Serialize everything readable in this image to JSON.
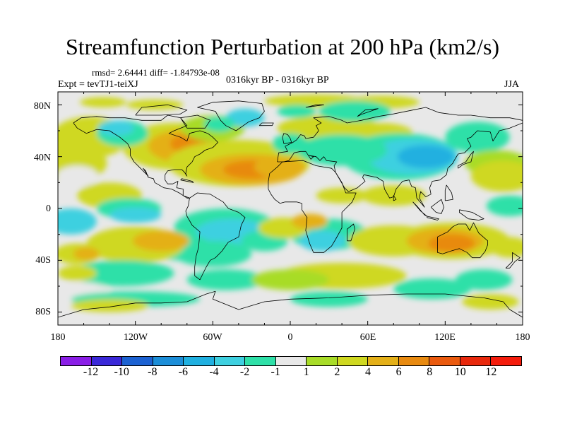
{
  "figure": {
    "title": "Streamfunction Perturbation at 200 hPa (km2/s)",
    "stats": "rmsd= 2.64441  diff= -1.84793e-08",
    "experiment": "Expt = tevTJ1-teiXJ",
    "period": "0316kyr BP - 0316kyr BP",
    "season": "JJA"
  },
  "map": {
    "projection": "cylindrical equidistant",
    "lon_range": [
      -180,
      180
    ],
    "lat_range": [
      -90,
      90
    ],
    "lat_labels": [
      "80N",
      "40N",
      "0",
      "40S",
      "80S"
    ],
    "lon_labels": [
      "180",
      "120W",
      "60W",
      "0",
      "60E",
      "120E",
      "180"
    ],
    "background_color": "#e8e8e8",
    "coastline_color": "#000000"
  },
  "chart_data": {
    "type": "heatmap",
    "title": "Streamfunction Perturbation at 200 hPa (km2/s)",
    "variable": "streamfunction perturbation",
    "units": "km2/s",
    "level": "200 hPa",
    "season": "JJA",
    "contour_levels": [
      -12,
      -10,
      -8,
      -6,
      -4,
      -2,
      -1,
      1,
      2,
      4,
      6,
      8,
      10,
      12
    ],
    "colorbar_labels": [
      "-12",
      "-10",
      "-8",
      "-6",
      "-4",
      "-2",
      "-1",
      "1",
      "2",
      "4",
      "6",
      "8",
      "10",
      "12"
    ],
    "colors": [
      "#8a1ee6",
      "#3a28d8",
      "#1c62d2",
      "#1c8ed8",
      "#20b0e0",
      "#3ed0e0",
      "#2ee0a8",
      "#e8e8e8",
      "#a8dc28",
      "#cfd820",
      "#e4b018",
      "#e88a10",
      "#ea5a0e",
      "#e8280c",
      "#f41c0c"
    ],
    "features": [
      {
        "name": "North Atlantic / North America high",
        "lon": -80,
        "lat": 45,
        "value": 6
      },
      {
        "name": "Subtropical Atlantic high",
        "lon": -30,
        "lat": 30,
        "value": 6
      },
      {
        "name": "Asian low",
        "lon": 80,
        "lat": 40,
        "value": -6
      },
      {
        "name": "Australian high",
        "lon": 130,
        "lat": -25,
        "value": 6
      },
      {
        "name": "South Atlantic low",
        "lon": -40,
        "lat": -15,
        "value": -4
      },
      {
        "name": "Indian Ocean low",
        "lon": 30,
        "lat": -25,
        "value": -4
      }
    ]
  }
}
